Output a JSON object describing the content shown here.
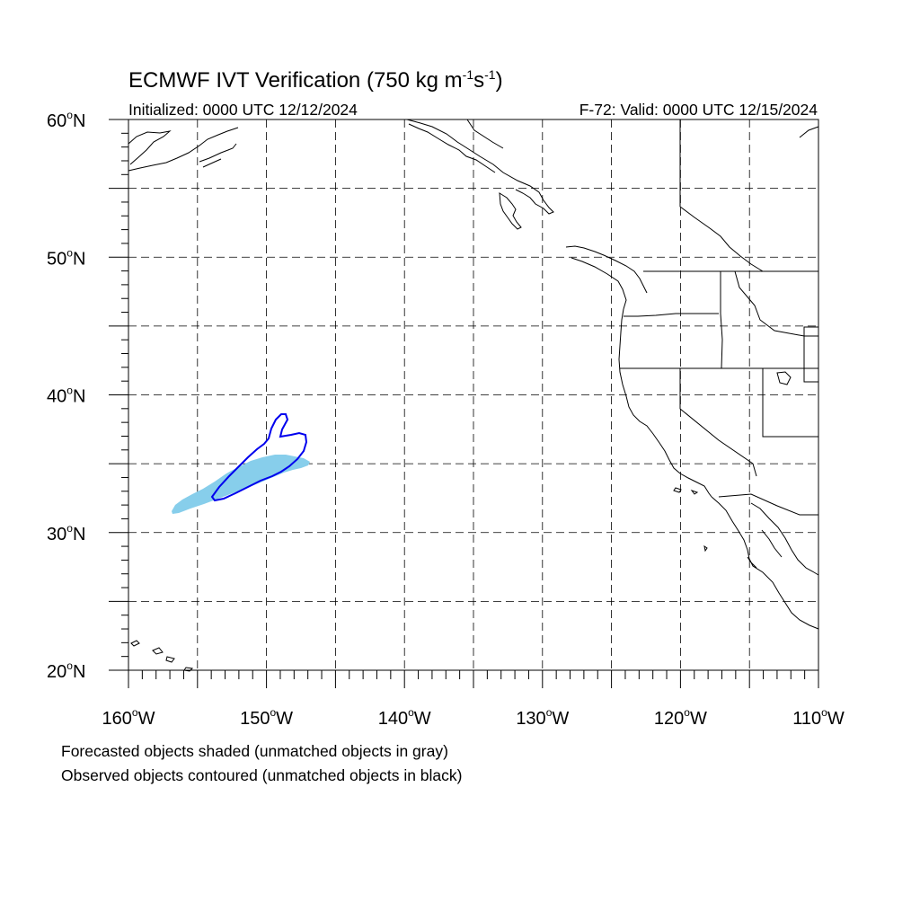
{
  "title": {
    "main": "ECMWF IVT Verification (750 kg m",
    "sup1": "-1",
    "mid": "s",
    "sup2": "-1",
    "end": ")"
  },
  "initialized": "Initialized: 0000 UTC 12/12/2024",
  "valid": "F-72: Valid: 0000 UTC 12/15/2024",
  "lat_labels": [
    "60",
    "50",
    "40",
    "30",
    "20"
  ],
  "lat_suffix": "N",
  "lon_labels": [
    "160",
    "150",
    "140",
    "130",
    "120",
    "110"
  ],
  "lon_suffix": "W",
  "degree": "o",
  "footer": {
    "line1": "Forecasted objects shaded (unmatched objects in gray)",
    "line2": "Observed objects contoured (unmatched objects in black)"
  },
  "map": {
    "lon_range": [
      -160,
      -110
    ],
    "lat_range": [
      20,
      60
    ],
    "grid_step_deg": 5,
    "gridlines": "dashed"
  },
  "colors": {
    "forecast_matched_fill": "#87ceeb",
    "observed_matched_contour": "#0000ee",
    "coastline": "#000000",
    "grid": "#000000"
  }
}
